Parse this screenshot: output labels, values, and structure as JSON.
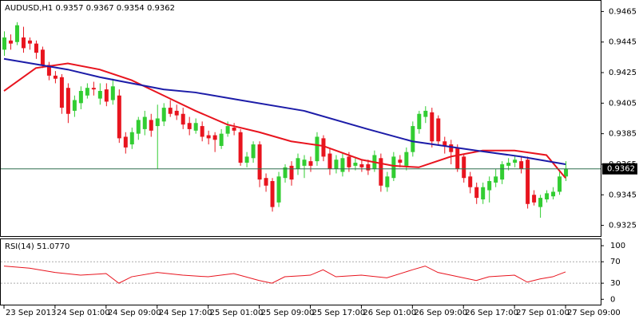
{
  "chart_data": {
    "type": "candlestick",
    "title": "AUDUSD,H1  0.9357 0.9367 0.9354 0.9362",
    "up_color": "#32cd32",
    "down_color": "#e8141e",
    "ylim": [
      0.9318,
      0.9472
    ],
    "yticks": [
      0.9465,
      0.9445,
      0.9425,
      0.9405,
      0.9385,
      0.9365,
      0.9345,
      0.9325
    ],
    "current_price": 0.9362,
    "xlim": [
      -0.5,
      93.5
    ],
    "xticks": [
      {
        "value": 0,
        "label": "23 Sep 2013"
      },
      {
        "value": 8,
        "label": "24 Sep 01:00"
      },
      {
        "value": 16,
        "label": "24 Sep 09:00"
      },
      {
        "value": 24,
        "label": "24 Sep 17:00"
      },
      {
        "value": 32,
        "label": "25 Sep 01:00"
      },
      {
        "value": 40,
        "label": "25 Sep 09:00"
      },
      {
        "value": 48,
        "label": "25 Sep 17:00"
      },
      {
        "value": 56,
        "label": "26 Sep 01:00"
      },
      {
        "value": 64,
        "label": "26 Sep 09:00"
      },
      {
        "value": 72,
        "label": "26 Sep 17:00"
      },
      {
        "value": 80,
        "label": "27 Sep 01:00"
      },
      {
        "value": 88,
        "label": "27 Sep 09:00"
      }
    ],
    "open": [
      0.944,
      0.9446,
      0.9445,
      0.9448,
      0.9446,
      0.9444,
      0.944,
      0.943,
      0.9423,
      0.9422,
      0.9415,
      0.94,
      0.9405,
      0.941,
      0.9415,
      0.9408,
      0.9414,
      0.9407,
      0.941,
      0.9383,
      0.9378,
      0.9385,
      0.9388,
      0.9394,
      0.939,
      0.9393,
      0.9402,
      0.94,
      0.9398,
      0.9392,
      0.9387,
      0.939,
      0.9384,
      0.9384,
      0.9377,
      0.9385,
      0.9389,
      0.9386,
      0.9366,
      0.9369,
      0.9378,
      0.9356,
      0.9354,
      0.934,
      0.9356,
      0.9364,
      0.9362,
      0.9364,
      0.9367,
      0.9367,
      0.9382,
      0.9372,
      0.9362,
      0.936,
      0.937,
      0.9364,
      0.9365,
      0.9365,
      0.9362,
      0.9369,
      0.935,
      0.9356,
      0.9368,
      0.9364,
      0.9373,
      0.9388,
      0.9396,
      0.9399,
      0.9395,
      0.938,
      0.9378,
      0.9376,
      0.937,
      0.9357,
      0.935,
      0.9342,
      0.9348,
      0.9353,
      0.9355,
      0.9364,
      0.9366,
      0.9367,
      0.9368,
      0.9345,
      0.9337,
      0.9342,
      0.9344,
      0.9347,
      0.9357
    ],
    "high": [
      0.9452,
      0.945,
      0.9458,
      0.9455,
      0.9448,
      0.9446,
      0.9442,
      0.9432,
      0.9426,
      0.9424,
      0.9418,
      0.941,
      0.9416,
      0.9418,
      0.9419,
      0.9418,
      0.9418,
      0.9421,
      0.9414,
      0.9386,
      0.9389,
      0.9396,
      0.94,
      0.9398,
      0.9404,
      0.9405,
      0.9407,
      0.9404,
      0.9402,
      0.9396,
      0.9395,
      0.9393,
      0.9387,
      0.9386,
      0.9388,
      0.9393,
      0.9392,
      0.9388,
      0.9373,
      0.938,
      0.938,
      0.9359,
      0.9356,
      0.936,
      0.9365,
      0.9367,
      0.9372,
      0.9371,
      0.937,
      0.9386,
      0.9384,
      0.9375,
      0.9371,
      0.9372,
      0.9373,
      0.9369,
      0.9368,
      0.9368,
      0.9374,
      0.9372,
      0.936,
      0.9373,
      0.9371,
      0.9376,
      0.9393,
      0.94,
      0.9403,
      0.9402,
      0.9397,
      0.9383,
      0.9381,
      0.9378,
      0.9372,
      0.936,
      0.9353,
      0.9353,
      0.9357,
      0.9362,
      0.9367,
      0.9369,
      0.9371,
      0.937,
      0.937,
      0.9348,
      0.9345,
      0.9348,
      0.935,
      0.936,
      0.9367
    ],
    "low": [
      0.9436,
      0.944,
      0.9443,
      0.9438,
      0.944,
      0.9434,
      0.9428,
      0.942,
      0.9418,
      0.9398,
      0.9392,
      0.9396,
      0.9401,
      0.9408,
      0.941,
      0.9404,
      0.9403,
      0.9404,
      0.9379,
      0.9372,
      0.9375,
      0.9381,
      0.9384,
      0.9383,
      0.9362,
      0.939,
      0.9396,
      0.9394,
      0.9388,
      0.9384,
      0.9385,
      0.938,
      0.9378,
      0.9373,
      0.9375,
      0.9383,
      0.9384,
      0.9364,
      0.9363,
      0.9366,
      0.935,
      0.9347,
      0.9334,
      0.9337,
      0.9353,
      0.9351,
      0.9358,
      0.9356,
      0.936,
      0.9364,
      0.9367,
      0.9358,
      0.9359,
      0.9357,
      0.936,
      0.9361,
      0.936,
      0.9358,
      0.936,
      0.9347,
      0.9347,
      0.9354,
      0.9363,
      0.9361,
      0.937,
      0.9385,
      0.9392,
      0.9376,
      0.9377,
      0.9372,
      0.9365,
      0.936,
      0.9353,
      0.9346,
      0.9339,
      0.9339,
      0.934,
      0.935,
      0.9352,
      0.9361,
      0.9363,
      0.9359,
      0.9336,
      0.9338,
      0.933,
      0.934,
      0.9342,
      0.9345,
      0.9354
    ],
    "close": [
      0.9448,
      0.9444,
      0.9456,
      0.9441,
      0.9444,
      0.9438,
      0.943,
      0.9423,
      0.9421,
      0.9402,
      0.9398,
      0.9407,
      0.9413,
      0.9415,
      0.9414,
      0.9413,
      0.9406,
      0.9416,
      0.9382,
      0.9376,
      0.9386,
      0.9394,
      0.9396,
      0.9387,
      0.9395,
      0.9402,
      0.9398,
      0.9397,
      0.9391,
      0.9388,
      0.9392,
      0.9383,
      0.9382,
      0.9381,
      0.9385,
      0.939,
      0.9387,
      0.9366,
      0.937,
      0.9378,
      0.9355,
      0.9351,
      0.9337,
      0.9357,
      0.9363,
      0.9355,
      0.9369,
      0.9368,
      0.9364,
      0.9383,
      0.937,
      0.9362,
      0.9368,
      0.9369,
      0.9363,
      0.9366,
      0.9363,
      0.9361,
      0.9371,
      0.9351,
      0.9357,
      0.937,
      0.9366,
      0.9373,
      0.939,
      0.9398,
      0.94,
      0.938,
      0.938,
      0.9377,
      0.9373,
      0.9362,
      0.9356,
      0.935,
      0.9343,
      0.935,
      0.9354,
      0.9357,
      0.9365,
      0.9366,
      0.9368,
      0.9362,
      0.9339,
      0.934,
      0.9343,
      0.9346,
      0.9347,
      0.9357,
      0.9362
    ],
    "moving_averages": [
      {
        "color": "#e8141e",
        "x": [
          0,
          5,
          10,
          15,
          20,
          25,
          30,
          35,
          40,
          45,
          50,
          56,
          61,
          65,
          70,
          75,
          80,
          85,
          88
        ],
        "values": [
          0.9413,
          0.9428,
          0.9431,
          0.9427,
          0.942,
          0.941,
          0.94,
          0.9391,
          0.9386,
          0.938,
          0.9377,
          0.9368,
          0.9364,
          0.9363,
          0.937,
          0.9374,
          0.9374,
          0.9371,
          0.9356
        ]
      },
      {
        "color": "#1c1ca8",
        "x": [
          0,
          10,
          15,
          25,
          30,
          37,
          47,
          57,
          64,
          74,
          81,
          88
        ],
        "values": [
          0.9434,
          0.9427,
          0.9422,
          0.9414,
          0.9412,
          0.9407,
          0.94,
          0.9388,
          0.938,
          0.9374,
          0.937,
          0.9365
        ]
      }
    ],
    "rsi": {
      "title": "RSI(14) 51.0770",
      "color": "#e8141e",
      "ylim": [
        -10,
        112
      ],
      "yticks": [
        100,
        70,
        30,
        0
      ],
      "levels": [
        70,
        30
      ],
      "x": [
        0,
        4,
        8,
        12,
        16,
        18,
        20,
        24,
        28,
        32,
        36,
        40,
        42,
        44,
        48,
        50,
        52,
        56,
        60,
        64,
        66,
        68,
        72,
        74,
        76,
        80,
        82,
        84,
        86,
        88
      ],
      "values": [
        62,
        58,
        50,
        45,
        48,
        30,
        42,
        50,
        45,
        42,
        48,
        35,
        30,
        42,
        45,
        55,
        42,
        45,
        40,
        55,
        62,
        50,
        40,
        35,
        42,
        45,
        32,
        38,
        42,
        51.077
      ]
    }
  }
}
